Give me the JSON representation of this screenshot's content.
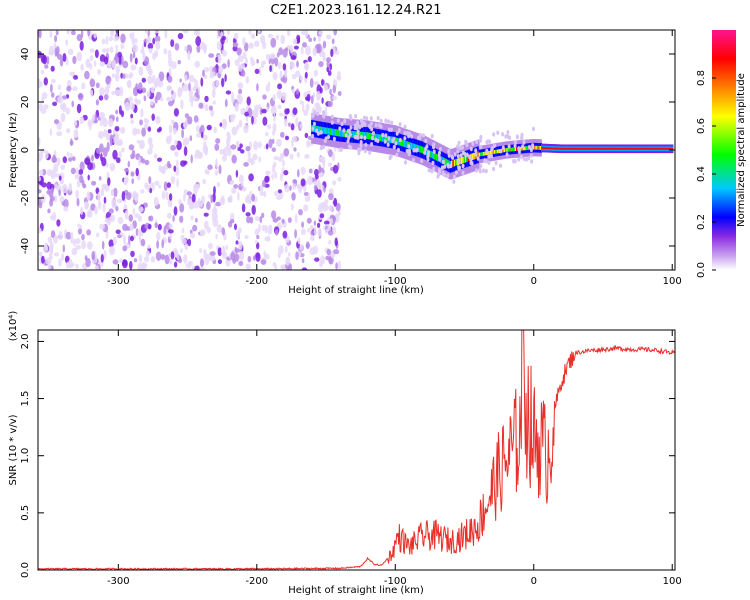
{
  "page": {
    "title": "C2E1.2023.161.12.24.R21"
  },
  "colors": {
    "snr_line": "#e8302a",
    "axis": "#000000",
    "background": "#ffffff"
  },
  "colorscale": [
    "#ffffff",
    "#c8a0f0",
    "#8a2be2",
    "#0000ff",
    "#00c8ff",
    "#00ff00",
    "#ffff00",
    "#ff8000",
    "#ff0000",
    "#ff1493"
  ],
  "chart_data": [
    {
      "type": "heatmap",
      "title": "C2E1.2023.161.12.24.R21",
      "xlabel": "Height of straight line (km)",
      "ylabel": "Frequency (Hz)",
      "xlim": [
        -358,
        102
      ],
      "ylim": [
        -50,
        50
      ],
      "x_ticks": [
        -300,
        -200,
        -100,
        0,
        100
      ],
      "y_ticks": [
        -40,
        -20,
        0,
        20,
        40
      ],
      "colorbar": {
        "label": "Normalized spectral amplitude",
        "range": [
          0,
          1
        ],
        "ticks": [
          "0.0",
          "0.2",
          "0.4",
          "0.6",
          "0.8"
        ]
      },
      "signal_trace": {
        "height_km": [
          -160,
          -140,
          -120,
          -100,
          -80,
          -60,
          -40,
          -20,
          0,
          20,
          60,
          100
        ],
        "frequency_hz": [
          9,
          7,
          6,
          4,
          0,
          -6,
          -2,
          0,
          1,
          0.5,
          0.5,
          0.5
        ]
      },
      "noise_region_km": [
        -358,
        -140
      ]
    },
    {
      "type": "line",
      "xlabel": "Height of straight line (km)",
      "ylabel": "SNR (10 * v/v)",
      "y_multiplier": "(x10⁴)",
      "xlim": [
        -358,
        102
      ],
      "ylim": [
        0,
        2.1
      ],
      "x_ticks": [
        -300,
        -200,
        -100,
        0,
        100
      ],
      "y_ticks": [
        "0.0",
        "0.5",
        "1.0",
        "1.5",
        "2.0"
      ],
      "series": [
        {
          "x": [
            -358,
            -300,
            -200,
            -140,
            -125,
            -120,
            -115,
            -110,
            -102,
            -98,
            -90,
            -80,
            -70,
            -60,
            -50,
            -40,
            -35,
            -30,
            -25,
            -20,
            -15,
            -10,
            -8,
            -5,
            0,
            5,
            10,
            15,
            20,
            25,
            30,
            40,
            50,
            60,
            70,
            80,
            90,
            100,
            102
          ],
          "y": [
            0.01,
            0.01,
            0.01,
            0.015,
            0.03,
            0.1,
            0.05,
            0.04,
            0.15,
            0.3,
            0.2,
            0.3,
            0.3,
            0.25,
            0.3,
            0.4,
            0.55,
            0.7,
            0.85,
            0.95,
            1.05,
            1.2,
            2.1,
            1.4,
            1.15,
            1.1,
            1.0,
            1.4,
            1.65,
            1.8,
            1.9,
            1.92,
            1.93,
            1.94,
            1.93,
            1.93,
            1.92,
            1.9,
            1.89
          ]
        }
      ]
    }
  ]
}
